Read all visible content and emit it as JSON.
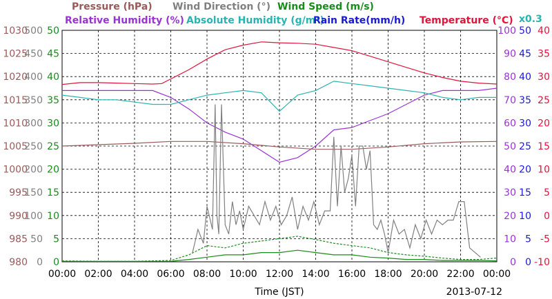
{
  "header": {
    "row1": [
      {
        "text": "Pressure (hPa)",
        "color": "#9a5a5a"
      },
      {
        "text": "Wind Direction (°)",
        "color": "#808080"
      },
      {
        "text": "Wind Speed (m/s)",
        "color": "#1a8a1a"
      }
    ],
    "row2": [
      {
        "text": "Relative Humidity (%)",
        "color": "#9a33d6"
      },
      {
        "text": "Absolute Humidity (g/m³)",
        "color": "#2ab3b3"
      },
      {
        "text": "Rain Rate(mm/h)",
        "color": "#1a1ad6"
      },
      {
        "text": "Temperature (°C)",
        "color": "#e0143c"
      }
    ],
    "multiplier": "x0.3"
  },
  "footer": {
    "xlabel": "Time (JST)",
    "date": "2013-07-12"
  },
  "chart_data": {
    "type": "line",
    "x_ticks": [
      "00:00",
      "02:00",
      "04:00",
      "06:00",
      "08:00",
      "10:00",
      "12:00",
      "14:00",
      "16:00",
      "18:00",
      "20:00",
      "22:00",
      "00:00"
    ],
    "xlim_hours": [
      0,
      24
    ],
    "grid": true,
    "left_axes": [
      {
        "name": "Pressure (hPa)",
        "color": "#9a5a5a",
        "ticks": [
          "980",
          "985",
          "990",
          "995",
          "1000",
          "1005",
          "1010",
          "1015",
          "1020",
          "1025",
          "1030"
        ],
        "range": [
          980,
          1030
        ]
      },
      {
        "name": "Wind Direction (°)",
        "color": "#808080",
        "ticks": [
          "0",
          "50",
          "100",
          "150",
          "200",
          "250",
          "300",
          "350",
          "400",
          "450",
          "500"
        ],
        "range": [
          0,
          500
        ]
      },
      {
        "name": "Wind Speed (m/s)",
        "color": "#1a8a1a",
        "ticks": [
          "0",
          "5",
          "10",
          "15",
          "20",
          "25",
          "30",
          "35",
          "40",
          "45",
          "50"
        ],
        "range": [
          0,
          50
        ]
      }
    ],
    "right_axes": [
      {
        "name": "Relative Humidity (%)",
        "color": "#9a33d6",
        "ticks": [
          "0",
          "10",
          "20",
          "30",
          "40",
          "50",
          "60",
          "70",
          "80",
          "90",
          "100"
        ],
        "range": [
          0,
          100
        ]
      },
      {
        "name": "Rain Rate(mm/h)",
        "color": "#1a1ad6",
        "ticks": [
          "0",
          "5",
          "10",
          "15",
          "20",
          "25",
          "30",
          "35",
          "40",
          "45",
          "50"
        ],
        "range": [
          0,
          50
        ]
      },
      {
        "name": "Temperature (°C)",
        "color": "#e0143c",
        "ticks": [
          "-10",
          "-5",
          "0",
          "5",
          "10",
          "15",
          "20",
          "25",
          "30",
          "35",
          "40"
        ],
        "range": [
          -10,
          40
        ]
      }
    ],
    "series": [
      {
        "name": "Temperature (°C)",
        "color": "#e0143c",
        "axis": "Temperature (°C)",
        "x": [
          0,
          1,
          2,
          3,
          4,
          5,
          5.5,
          6,
          7,
          8,
          9,
          10,
          11,
          12,
          13,
          14,
          15,
          16,
          17,
          18,
          19,
          20,
          21,
          22,
          23,
          24
        ],
        "y": [
          28.3,
          28.7,
          28.7,
          28.6,
          28.5,
          28.4,
          28.5,
          29.5,
          31.5,
          33.8,
          35.8,
          36.8,
          37.5,
          37.3,
          37.2,
          37.0,
          36.3,
          35.6,
          34.4,
          33.2,
          32.0,
          30.8,
          29.8,
          29.0,
          28.6,
          28.4
        ]
      },
      {
        "name": "Relative Humidity (%)",
        "color": "#9a33d6",
        "axis": "Relative Humidity (%)",
        "x": [
          0,
          1,
          2,
          3,
          4,
          5,
          6,
          7,
          8,
          9,
          10,
          11,
          12,
          13,
          14,
          15,
          16,
          17,
          18,
          19,
          20,
          21,
          22,
          23,
          24
        ],
        "y": [
          74,
          74,
          74,
          74,
          74,
          74,
          71,
          66,
          60,
          56,
          53,
          48,
          43,
          45,
          50,
          57,
          58,
          61,
          64,
          68,
          72,
          74,
          74,
          74,
          75
        ]
      },
      {
        "name": "Absolute Humidity (g/m³)",
        "color": "#2ab3b3",
        "axis": "Relative Humidity (%)",
        "x": [
          0,
          1,
          2,
          3,
          4,
          5,
          6,
          7,
          8,
          9,
          10,
          11,
          12,
          13,
          14,
          15,
          16,
          17,
          18,
          19,
          20,
          21,
          22,
          23,
          24
        ],
        "y": [
          72,
          71,
          70,
          70,
          69,
          68,
          68,
          70,
          72,
          73,
          74,
          73,
          65,
          72,
          74,
          78,
          77,
          76,
          75,
          74,
          73,
          71,
          70,
          71,
          71
        ]
      },
      {
        "name": "Pressure (hPa)",
        "color": "#9a5a5a",
        "axis": "Pressure (hPa)",
        "x": [
          0,
          2,
          4,
          6,
          8,
          10,
          12,
          14,
          16,
          18,
          20,
          22,
          24
        ],
        "y": [
          1005.0,
          1005.3,
          1005.6,
          1006.0,
          1006.0,
          1005.5,
          1004.8,
          1004.3,
          1004.3,
          1004.8,
          1005.5,
          1005.9,
          1006.0
        ]
      },
      {
        "name": "Wind Direction (°)",
        "color": "#808080",
        "axis": "Wind Direction (°)",
        "x": [
          7.2,
          7.5,
          7.8,
          8.0,
          8.3,
          8.45,
          8.55,
          8.65,
          8.8,
          9.0,
          9.2,
          9.4,
          9.6,
          9.8,
          10.0,
          10.3,
          10.6,
          10.9,
          11.2,
          11.5,
          11.8,
          12.1,
          12.4,
          12.7,
          13.0,
          13.3,
          13.6,
          13.9,
          14.2,
          14.5,
          14.8,
          15.0,
          15.2,
          15.4,
          15.6,
          15.8,
          16.0,
          16.2,
          16.4,
          16.6,
          16.8,
          17.0,
          17.2,
          17.4,
          17.6,
          17.8,
          18.0,
          18.3,
          18.6,
          18.9,
          19.2,
          19.5,
          19.8,
          20.1,
          20.4,
          20.7,
          21.0,
          21.3,
          21.6,
          21.9,
          22.2,
          22.5,
          22.8,
          23.1
        ],
        "y": [
          20,
          70,
          40,
          120,
          70,
          340,
          100,
          60,
          340,
          80,
          60,
          130,
          80,
          110,
          70,
          120,
          100,
          80,
          130,
          90,
          120,
          80,
          100,
          140,
          70,
          120,
          90,
          130,
          80,
          110,
          110,
          270,
          120,
          250,
          150,
          180,
          230,
          120,
          250,
          250,
          200,
          240,
          80,
          70,
          90,
          60,
          20,
          90,
          60,
          70,
          30,
          80,
          50,
          90,
          60,
          90,
          80,
          90,
          90,
          130,
          130,
          30,
          20,
          10
        ]
      },
      {
        "name": "Wind Speed (m/s)",
        "color": "#1a8a1a",
        "axis": "Wind Speed (m/s)",
        "x": [
          0,
          2,
          4,
          6,
          7,
          8,
          9,
          10,
          11,
          12,
          13,
          14,
          15,
          16,
          17,
          18,
          19,
          20,
          21,
          22,
          23,
          24
        ],
        "y": [
          0.2,
          0.1,
          0.1,
          0.3,
          1.5,
          3.5,
          3.0,
          4.0,
          4.5,
          5.0,
          5.5,
          4.8,
          4.0,
          3.5,
          3.0,
          2.0,
          1.5,
          1.2,
          0.8,
          0.5,
          0.5,
          0.8
        ]
      },
      {
        "name": "Wind Speed (m/s)",
        "color": "#1a8a1a",
        "axis": "Wind Speed (m/s)",
        "x": [
          0,
          2,
          4,
          6,
          7,
          8,
          9,
          10,
          11,
          12,
          13,
          14,
          15,
          16,
          17,
          18,
          19,
          20,
          21,
          22,
          23,
          24
        ],
        "y": [
          0.1,
          0.1,
          0.1,
          0.1,
          0.5,
          1.0,
          1.5,
          1.5,
          2.0,
          2.0,
          2.5,
          2.0,
          1.5,
          1.5,
          1.0,
          0.8,
          0.5,
          0.5,
          0.3,
          0.3,
          0.3,
          0.2
        ]
      }
    ]
  }
}
